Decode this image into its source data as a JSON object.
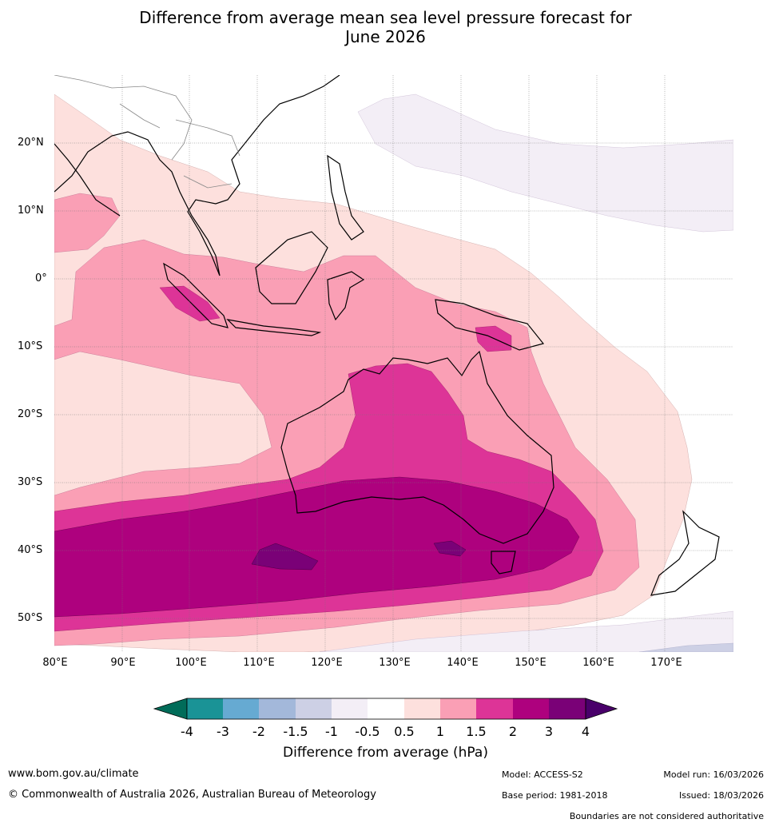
{
  "title": {
    "line1": "Difference from average mean sea level pressure forecast for",
    "line2": "June 2026"
  },
  "map": {
    "latitude_labels": [
      "20°N",
      "10°N",
      "0°",
      "10°S",
      "20°S",
      "30°S",
      "40°S",
      "50°S"
    ],
    "longitude_labels": [
      "80°E",
      "90°E",
      "100°E",
      "110°E",
      "120°E",
      "130°E",
      "140°E",
      "150°E",
      "160°E",
      "170°E"
    ],
    "extent": {
      "lon": [
        80,
        180
      ],
      "lat": [
        -55,
        30
      ]
    }
  },
  "legend": {
    "title": "Difference from average (hPa)",
    "ticks": [
      "-4",
      "-3",
      "-2",
      "-1.5",
      "-1",
      "-0.5",
      "0.5",
      "1",
      "1.5",
      "2",
      "3",
      "4"
    ],
    "colors": [
      "#1a9396",
      "#66aad2",
      "#a3b8da",
      "#cdd0e5",
      "#f3eef6",
      "#ffffff",
      "#fde0dd",
      "#fa9fb5",
      "#dd3497",
      "#ae017e",
      "#7a0177"
    ],
    "under_color": "#016c59",
    "over_color": "#49006a"
  },
  "footer": {
    "website": "www.bom.gov.au/climate",
    "copyright": "© Commonwealth of Australia 2026, Australian Bureau of Meteorology",
    "model": "Model: ACCESS-S2",
    "base_period": "Base period: 1981-2018",
    "model_run": "Model run: 16/03/2026",
    "issued": "Issued: 18/03/2026",
    "boundaries": "Boundaries are not considered authoritative"
  }
}
